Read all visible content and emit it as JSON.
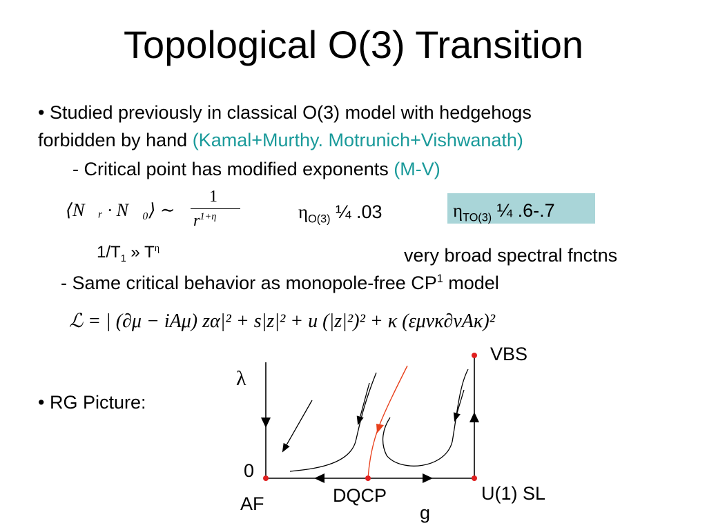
{
  "title": "Topological O(3) Transition",
  "bullets": [
    {
      "text": "• Studied previously in classical O(3) model with hedgehogs",
      "text2": "forbidden by hand",
      "cite": "(Kamal+Murthy. Motrunich+Vishwanath)"
    },
    {
      "text": "- Critical point has modified exponents",
      "cite": "(M-V)"
    }
  ],
  "correlator": {
    "lhs": "⟨N⃗ᵣ · N⃗₀⟩ ∼",
    "numerator": "1",
    "base": "r",
    "exponent": "1+η"
  },
  "eta_o3": {
    "symbol": "η",
    "sub": "O(3)",
    "value": "¼ .03"
  },
  "eta_to3": {
    "symbol": "η",
    "sub": "TO(3)",
    "value": "¼ .6-.7"
  },
  "relaxation": {
    "lead": "1/T",
    "sub": "1",
    "mid": " » T",
    "sup": "η"
  },
  "spectral_note": "very broad spectral fnctns",
  "cp1": {
    "text": "- Same critical behavior as monopole-free CP",
    "sup": "1",
    "tail": " model"
  },
  "lagrangian": "ℒ = | (∂μ − iAμ) zα|² + s|z|² + u (|z|²)² + κ (εμνκ∂νAκ)²",
  "rg": {
    "label": "• RG Picture:",
    "lambda": "λ",
    "vbs": "VBS",
    "zero": "0",
    "af": "AF",
    "dqcp": "DQCP",
    "g": "g",
    "u1sl": "U(1) SL"
  }
}
